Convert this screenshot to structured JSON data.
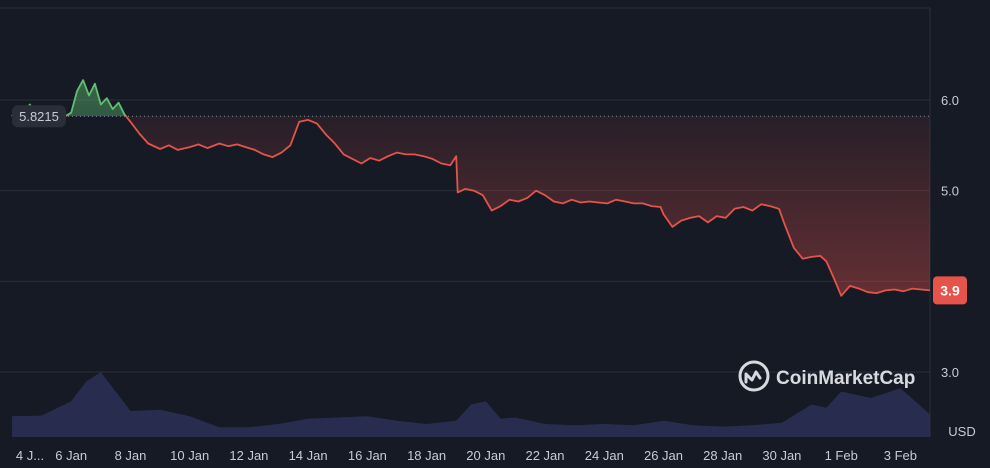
{
  "colors": {
    "background": "#161a25",
    "grid": "#2a2e39",
    "up": "#5fbf73",
    "down": "#e5534b",
    "volume": "#2b3157",
    "price_badge_bg": "#e5534b",
    "baseline_badge_bg": "#2a2e39"
  },
  "chart_data": {
    "type": "line",
    "title": "",
    "currency_label": "USD",
    "watermark": "CoinMarketCap",
    "ylim": [
      2.5,
      6.8
    ],
    "y_ticks": [
      {
        "value": 6.0,
        "label": "6.0"
      },
      {
        "value": 5.0,
        "label": "5.0"
      },
      {
        "value": 3.0,
        "label": "3.0"
      }
    ],
    "x_ticks": [
      {
        "day": 0,
        "label": "4 J..."
      },
      {
        "day": 2,
        "label": "6 Jan"
      },
      {
        "day": 4,
        "label": "8 Jan"
      },
      {
        "day": 6,
        "label": "10 Jan"
      },
      {
        "day": 8,
        "label": "12 Jan"
      },
      {
        "day": 10,
        "label": "14 Jan"
      },
      {
        "day": 12,
        "label": "16 Jan"
      },
      {
        "day": 14,
        "label": "18 Jan"
      },
      {
        "day": 16,
        "label": "20 Jan"
      },
      {
        "day": 18,
        "label": "22 Jan"
      },
      {
        "day": 20,
        "label": "24 Jan"
      },
      {
        "day": 22,
        "label": "26 Jan"
      },
      {
        "day": 24,
        "label": "28 Jan"
      },
      {
        "day": 26,
        "label": "30 Jan"
      },
      {
        "day": 28,
        "label": "1 Feb"
      },
      {
        "day": 30,
        "label": "3 Feb"
      }
    ],
    "baseline": {
      "value": 5.8215,
      "label": "5.8215"
    },
    "current_price": {
      "value": 3.9,
      "label": "3.9"
    },
    "series": [
      {
        "x": [
          0,
          0.2,
          0.4,
          0.6,
          0.8,
          1.0,
          1.2,
          1.4,
          1.6,
          1.8,
          2.0,
          2.2,
          2.4,
          2.6,
          2.8,
          3.0,
          3.2,
          3.4,
          3.6,
          3.8,
          4.0,
          4.3,
          4.6,
          5.0,
          5.3,
          5.6,
          6.0,
          6.3,
          6.6,
          7.0,
          7.3,
          7.6,
          8.0,
          8.2,
          8.5,
          8.8,
          9.1,
          9.4,
          9.7,
          10.0,
          10.3,
          10.6,
          10.9,
          11.2,
          11.5,
          11.8,
          12.1,
          12.4,
          12.7,
          13.0,
          13.3,
          13.6,
          13.9,
          14.2,
          14.5,
          14.8,
          15.0,
          15.05,
          15.3,
          15.6,
          15.9,
          16.2,
          16.5,
          16.8,
          17.1,
          17.4,
          17.7,
          18.0,
          18.3,
          18.6,
          18.9,
          19.2,
          19.5,
          19.8,
          20.1,
          20.4,
          20.7,
          21.0,
          21.3,
          21.6,
          21.9,
          22.0,
          22.3,
          22.6,
          22.9,
          23.2,
          23.5,
          23.8,
          24.1,
          24.4,
          24.7,
          25.0,
          25.3,
          25.6,
          25.9,
          26.1,
          26.4,
          26.7,
          27.0,
          27.3,
          27.5,
          27.8,
          28.0,
          28.3,
          28.6,
          28.9,
          29.2,
          29.5,
          29.8,
          30.1,
          30.4,
          30.7,
          31.0
        ],
        "values": [
          5.82,
          5.93,
          5.86,
          5.95,
          5.84,
          5.92,
          5.87,
          5.88,
          5.91,
          5.82,
          5.86,
          6.1,
          6.22,
          6.05,
          6.18,
          5.95,
          6.02,
          5.9,
          5.97,
          5.84,
          5.76,
          5.63,
          5.52,
          5.46,
          5.5,
          5.45,
          5.48,
          5.51,
          5.47,
          5.52,
          5.49,
          5.51,
          5.47,
          5.45,
          5.4,
          5.37,
          5.42,
          5.5,
          5.76,
          5.78,
          5.74,
          5.62,
          5.52,
          5.4,
          5.35,
          5.3,
          5.36,
          5.33,
          5.38,
          5.42,
          5.4,
          5.4,
          5.38,
          5.35,
          5.3,
          5.28,
          5.38,
          4.98,
          5.02,
          5.0,
          4.95,
          4.78,
          4.83,
          4.9,
          4.88,
          4.92,
          5.0,
          4.95,
          4.88,
          4.86,
          4.9,
          4.87,
          4.88,
          4.87,
          4.86,
          4.9,
          4.88,
          4.86,
          4.86,
          4.83,
          4.82,
          4.74,
          4.6,
          4.67,
          4.7,
          4.72,
          4.65,
          4.72,
          4.7,
          4.8,
          4.82,
          4.78,
          4.85,
          4.83,
          4.8,
          4.62,
          4.37,
          4.25,
          4.27,
          4.28,
          4.22,
          4.0,
          3.84,
          3.95,
          3.92,
          3.88,
          3.87,
          3.9,
          3.91,
          3.89,
          3.92,
          3.91,
          3.9
        ]
      }
    ],
    "volume": {
      "x": [
        0,
        1,
        2,
        2.5,
        3,
        3.5,
        4,
        5,
        6,
        7,
        8,
        9,
        10,
        11,
        12,
        13,
        14,
        15,
        15.5,
        16,
        16.5,
        17,
        18,
        19,
        20,
        21,
        22,
        23,
        24,
        25,
        26,
        27,
        27.5,
        28,
        29,
        30,
        30.5,
        31
      ],
      "values": [
        0.32,
        0.33,
        0.55,
        0.85,
        1.0,
        0.7,
        0.4,
        0.42,
        0.32,
        0.15,
        0.15,
        0.2,
        0.28,
        0.3,
        0.32,
        0.25,
        0.2,
        0.25,
        0.5,
        0.55,
        0.28,
        0.3,
        0.2,
        0.18,
        0.2,
        0.18,
        0.25,
        0.18,
        0.16,
        0.18,
        0.22,
        0.5,
        0.45,
        0.7,
        0.6,
        0.75,
        0.55,
        0.35
      ]
    }
  }
}
